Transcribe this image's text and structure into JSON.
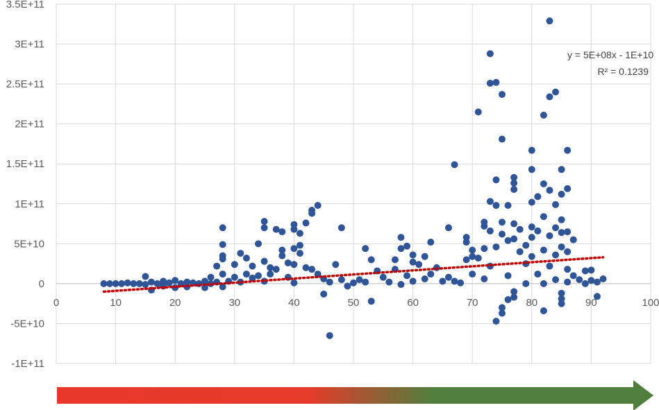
{
  "chart_data": {
    "type": "scatter",
    "title": "",
    "xlabel": "",
    "ylabel": "",
    "xlim": [
      0,
      100
    ],
    "ylim": [
      -100000000000,
      350000000000
    ],
    "x_ticks": [
      0,
      10,
      20,
      30,
      40,
      50,
      60,
      70,
      80,
      90,
      100
    ],
    "x_tick_labels": [
      "0",
      "10",
      "20",
      "30",
      "40",
      "50",
      "60",
      "70",
      "80",
      "90",
      "100"
    ],
    "y_ticks": [
      -100000000000,
      -50000000000,
      0,
      50000000000,
      100000000000,
      150000000000,
      200000000000,
      250000000000,
      300000000000,
      350000000000
    ],
    "y_tick_labels": [
      "-1E+11",
      "-5E+10",
      "0",
      "5E+10",
      "1E+11",
      "1.5E+11",
      "2E+11",
      "2.5E+11",
      "3E+11",
      "3.5E+11"
    ],
    "grid": true,
    "series": [
      {
        "name": "",
        "color": "#2F5597",
        "points": [
          [
            8,
            0
          ],
          [
            9,
            0
          ],
          [
            10,
            0
          ],
          [
            11,
            0
          ],
          [
            12,
            1000000000.0
          ],
          [
            13,
            0
          ],
          [
            14,
            0
          ],
          [
            15,
            9000000000.0
          ],
          [
            15,
            -1000000000.0
          ],
          [
            16,
            -8000000000.0
          ],
          [
            16,
            2000000000.0
          ],
          [
            17,
            0
          ],
          [
            18,
            -3000000000.0
          ],
          [
            18,
            3000000000.0
          ],
          [
            19,
            1000000000.0
          ],
          [
            20,
            -5000000000.0
          ],
          [
            20,
            4000000000.0
          ],
          [
            21,
            0
          ],
          [
            22,
            2000000000.0
          ],
          [
            22,
            -4000000000.0
          ],
          [
            23,
            1000000000.0
          ],
          [
            24,
            0
          ],
          [
            25,
            -5000000000.0
          ],
          [
            25,
            3000000000.0
          ],
          [
            26,
            0
          ],
          [
            26,
            8000000000.0
          ],
          [
            27,
            2000000000.0
          ],
          [
            27,
            22000000000.0
          ],
          [
            28,
            70000000000.0
          ],
          [
            28,
            49000000000.0
          ],
          [
            28,
            35000000000.0
          ],
          [
            28,
            31000000000.0
          ],
          [
            28,
            12000000000.0
          ],
          [
            28,
            -4000000000.0
          ],
          [
            29,
            3000000000.0
          ],
          [
            30,
            8000000000.0
          ],
          [
            30,
            24000000000.0
          ],
          [
            31,
            38000000000.0
          ],
          [
            31,
            2000000000.0
          ],
          [
            32,
            32000000000.0
          ],
          [
            32,
            12000000000.0
          ],
          [
            33,
            7000000000.0
          ],
          [
            33,
            22000000000.0
          ],
          [
            34,
            50000000000.0
          ],
          [
            34,
            10000000000.0
          ],
          [
            35,
            78000000000.0
          ],
          [
            35,
            70000000000.0
          ],
          [
            35,
            28000000000.0
          ],
          [
            35,
            3000000000.0
          ],
          [
            36,
            20000000000.0
          ],
          [
            36,
            12000000000.0
          ],
          [
            37,
            68000000000.0
          ],
          [
            37,
            18000000000.0
          ],
          [
            38,
            65000000000.0
          ],
          [
            38,
            42000000000.0
          ],
          [
            38,
            35000000000.0
          ],
          [
            39,
            8000000000.0
          ],
          [
            39,
            26000000000.0
          ],
          [
            40,
            74000000000.0
          ],
          [
            40,
            68000000000.0
          ],
          [
            40,
            44000000000.0
          ],
          [
            40,
            24000000000.0
          ],
          [
            40,
            1000000000.0
          ],
          [
            41,
            63000000000.0
          ],
          [
            41,
            48000000000.0
          ],
          [
            41,
            38000000000.0
          ],
          [
            42,
            76000000000.0
          ],
          [
            42,
            20000000000.0
          ],
          [
            43,
            92000000000.0
          ],
          [
            43,
            88000000000.0
          ],
          [
            43,
            18000000000.0
          ],
          [
            44,
            98000000000.0
          ],
          [
            44,
            12000000000.0
          ],
          [
            45,
            -13000000000.0
          ],
          [
            45,
            6000000000.0
          ],
          [
            46,
            -65000000000.0
          ],
          [
            46,
            2000000000.0
          ],
          [
            47,
            24000000000.0
          ],
          [
            48,
            70000000000.0
          ],
          [
            48,
            5000000000.0
          ],
          [
            49,
            -3000000000.0
          ],
          [
            50,
            1000000000.0
          ],
          [
            51,
            5000000000.0
          ],
          [
            52,
            44000000000.0
          ],
          [
            52,
            2000000000.0
          ],
          [
            53,
            -22000000000.0
          ],
          [
            53,
            30000000000.0
          ],
          [
            54,
            16000000000.0
          ],
          [
            55,
            8000000000.0
          ],
          [
            56,
            2000000000.0
          ],
          [
            57,
            30000000000.0
          ],
          [
            57,
            18000000000.0
          ],
          [
            58,
            58000000000.0
          ],
          [
            58,
            44000000000.0
          ],
          [
            58,
            -1000000000.0
          ],
          [
            59,
            47000000000.0
          ],
          [
            59,
            10000000000.0
          ],
          [
            60,
            36000000000.0
          ],
          [
            60,
            27000000000.0
          ],
          [
            60,
            3000000000.0
          ],
          [
            61,
            24000000000.0
          ],
          [
            62,
            34000000000.0
          ],
          [
            62,
            6000000000.0
          ],
          [
            63,
            52000000000.0
          ],
          [
            63,
            12000000000.0
          ],
          [
            64,
            20000000000.0
          ],
          [
            65,
            3000000000.0
          ],
          [
            66,
            70000000000.0
          ],
          [
            66,
            8000000000.0
          ],
          [
            67,
            149000000000.0
          ],
          [
            67,
            3000000000.0
          ],
          [
            68,
            1000000000.0
          ],
          [
            69,
            58000000000.0
          ],
          [
            69,
            52000000000.0
          ],
          [
            69,
            30000000000.0
          ],
          [
            70,
            42000000000.0
          ],
          [
            70,
            34000000000.0
          ],
          [
            70,
            12000000000.0
          ],
          [
            71,
            215000000000.0
          ],
          [
            71,
            32000000000.0
          ],
          [
            72,
            77000000000.0
          ],
          [
            72,
            72000000000.0
          ],
          [
            72,
            44000000000.0
          ],
          [
            72,
            6000000000.0
          ],
          [
            73,
            288000000000.0
          ],
          [
            73,
            251000000000.0
          ],
          [
            73,
            103000000000.0
          ],
          [
            73,
            66000000000.0
          ],
          [
            73,
            22000000000.0
          ],
          [
            74,
            252000000000.0
          ],
          [
            74,
            130000000000.0
          ],
          [
            74,
            98000000000.0
          ],
          [
            74,
            46000000000.0
          ],
          [
            74,
            -47000000000.0
          ],
          [
            75,
            237000000000.0
          ],
          [
            75,
            181000000000.0
          ],
          [
            75,
            77000000000.0
          ],
          [
            75,
            62000000000.0
          ],
          [
            75,
            -30000000000.0
          ],
          [
            75,
            -37000000000.0
          ],
          [
            76,
            98000000000.0
          ],
          [
            76,
            54000000000.0
          ],
          [
            76,
            10000000000.0
          ],
          [
            76,
            -20000000000.0
          ],
          [
            77,
            133000000000.0
          ],
          [
            77,
            126000000000.0
          ],
          [
            77,
            118000000000.0
          ],
          [
            77,
            75000000000.0
          ],
          [
            77,
            56000000000.0
          ],
          [
            77,
            -10000000000.0
          ],
          [
            77,
            -17000000000.0
          ],
          [
            78,
            68000000000.0
          ],
          [
            78,
            40000000000.0
          ],
          [
            79,
            48000000000.0
          ],
          [
            79,
            25000000000.0
          ],
          [
            79,
            0
          ],
          [
            80,
            167000000000.0
          ],
          [
            80,
            143000000000.0
          ],
          [
            80,
            102000000000.0
          ],
          [
            80,
            71000000000.0
          ],
          [
            80,
            58000000000.0
          ],
          [
            80,
            34000000000.0
          ],
          [
            81,
            109000000000.0
          ],
          [
            81,
            66000000000.0
          ],
          [
            81,
            12000000000.0
          ],
          [
            82,
            211000000000.0
          ],
          [
            82,
            125000000000.0
          ],
          [
            82,
            84000000000.0
          ],
          [
            82,
            42000000000.0
          ],
          [
            82,
            0
          ],
          [
            82,
            -34000000000.0
          ],
          [
            83,
            329000000000.0
          ],
          [
            83,
            234000000000.0
          ],
          [
            83,
            117000000000.0
          ],
          [
            83,
            60000000000.0
          ],
          [
            83,
            22000000000.0
          ],
          [
            84,
            240000000000.0
          ],
          [
            84,
            99000000000.0
          ],
          [
            84,
            70000000000.0
          ],
          [
            84,
            36000000000.0
          ],
          [
            84,
            5000000000.0
          ],
          [
            85,
            143000000000.0
          ],
          [
            85,
            112000000000.0
          ],
          [
            85,
            80000000000.0
          ],
          [
            85,
            64000000000.0
          ],
          [
            85,
            46000000000.0
          ],
          [
            85,
            -12000000000.0
          ],
          [
            85,
            -19000000000.0
          ],
          [
            85,
            -25000000000.0
          ],
          [
            86,
            167000000000.0
          ],
          [
            86,
            119000000000.0
          ],
          [
            86,
            65000000000.0
          ],
          [
            86,
            40000000000.0
          ],
          [
            86,
            18000000000.0
          ],
          [
            86,
            2000000000.0
          ],
          [
            87,
            55000000000.0
          ],
          [
            87,
            10000000000.0
          ],
          [
            88,
            5000000000.0
          ],
          [
            89,
            16000000000.0
          ],
          [
            89,
            0
          ],
          [
            90,
            17000000000.0
          ],
          [
            90,
            4000000000.0
          ],
          [
            91,
            -16000000000.0
          ],
          [
            91,
            2000000000.0
          ],
          [
            92,
            6000000000.0
          ]
        ]
      }
    ],
    "trendline": {
      "type": "linear",
      "color": "#C00000",
      "style": "dotted",
      "x_range": [
        8,
        92
      ],
      "y_range": [
        -10000000000,
        33000000000
      ],
      "equation": "y = 5E+08x - 1E+10",
      "r2": "R² = 0.1239"
    }
  },
  "axis_arrow": {
    "colors": [
      "#E8382B",
      "#E63A2A",
      "#507E3C"
    ],
    "meaning": ""
  }
}
